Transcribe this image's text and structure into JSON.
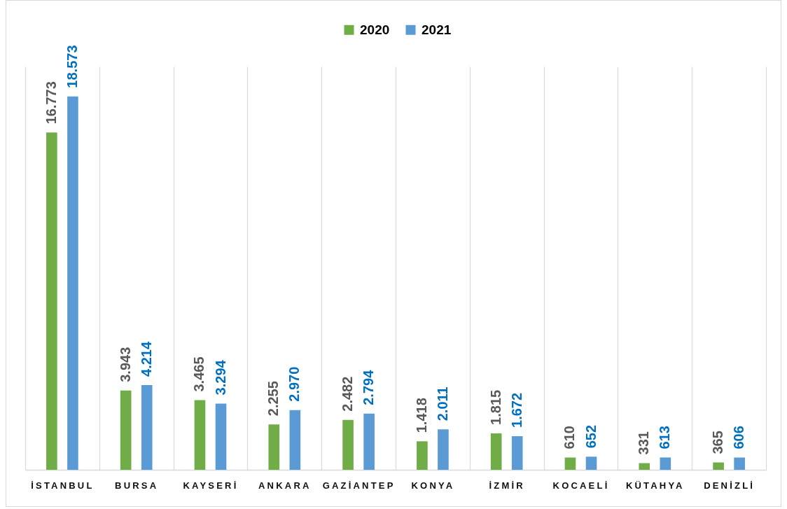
{
  "chart_data": {
    "type": "bar",
    "categories": [
      "İSTANBUL",
      "BURSA",
      "KAYSERİ",
      "ANKARA",
      "GAZİANTEP",
      "KONYA",
      "İZMİR",
      "KOCAELİ",
      "KÜTAHYA",
      "DENİZLİ"
    ],
    "series": [
      {
        "name": "2020",
        "color": "#70ad47",
        "values": [
          16773,
          3943,
          3465,
          2255,
          2482,
          1418,
          1815,
          610,
          331,
          365
        ],
        "value_labels": [
          "16.773",
          "3.943",
          "3.465",
          "2.255",
          "2.482",
          "1.418",
          "1.815",
          "610",
          "331",
          "365"
        ]
      },
      {
        "name": "2021",
        "color": "#5b9bd5",
        "values": [
          18573,
          4214,
          3294,
          2970,
          2794,
          2011,
          1672,
          652,
          613,
          606
        ],
        "value_labels": [
          "18.573",
          "4.214",
          "3.294",
          "2.970",
          "2.794",
          "2.011",
          "1.672",
          "652",
          "613",
          "606"
        ]
      }
    ],
    "legend": "top",
    "grid": "x",
    "tick_labels": "x"
  }
}
